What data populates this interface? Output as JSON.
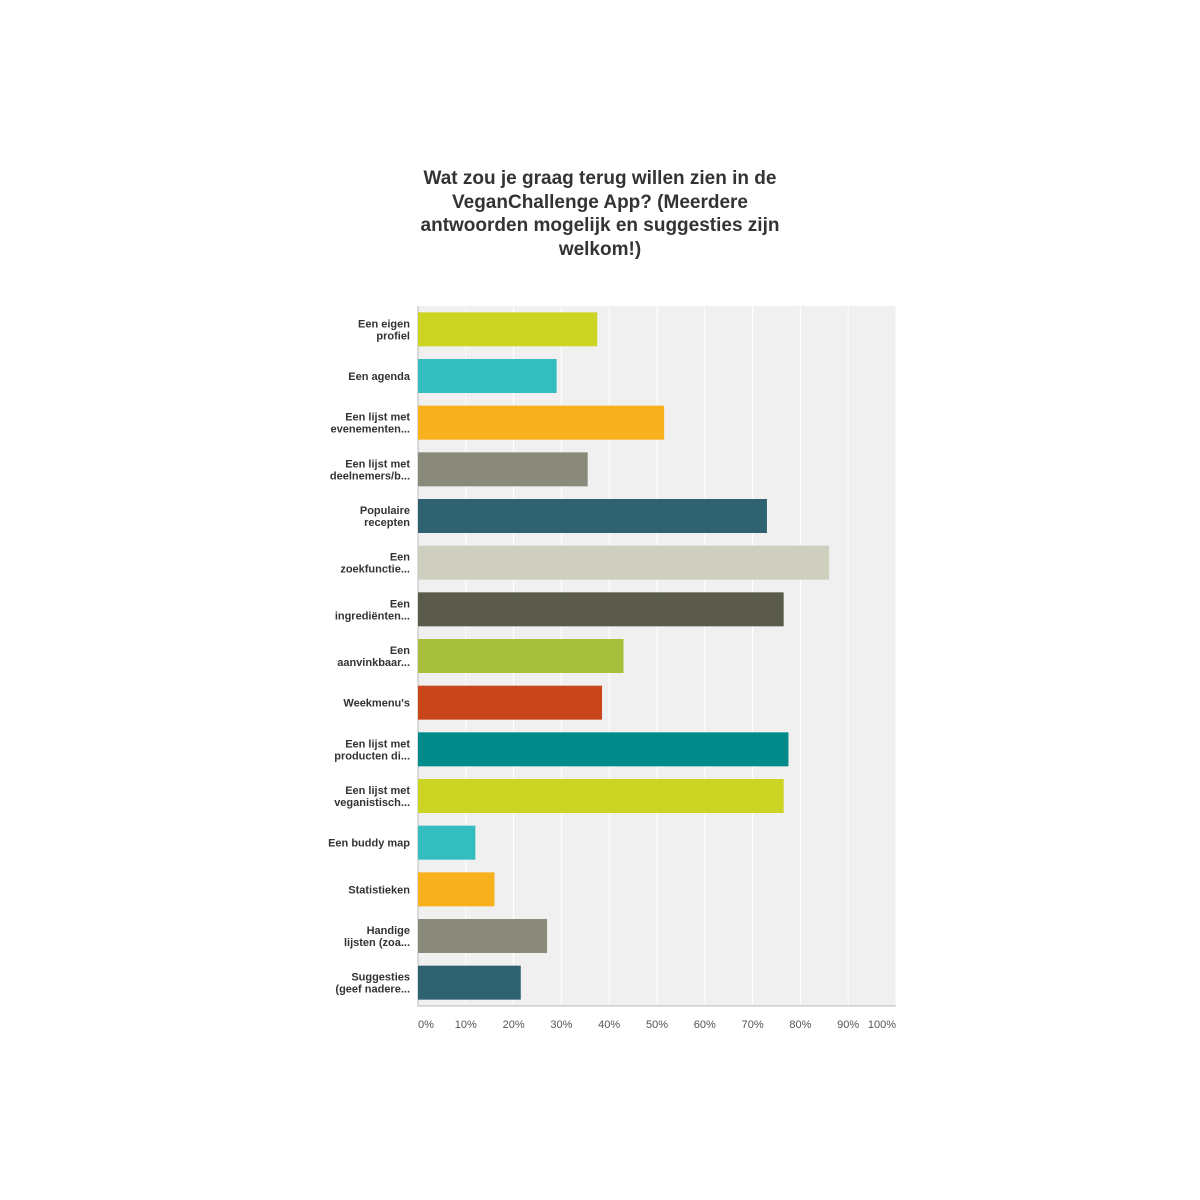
{
  "chart_data": {
    "type": "bar",
    "orientation": "horizontal",
    "title": "Wat zou je graag terug willen zien in de VeganChallenge App? (Meerdere antwoorden mogelijk en suggesties zijn welkom!)",
    "xlabel": "",
    "ylabel": "",
    "xlim": [
      0,
      100
    ],
    "x_ticks": [
      "0%",
      "10%",
      "20%",
      "30%",
      "40%",
      "50%",
      "60%",
      "70%",
      "80%",
      "90%",
      "100%"
    ],
    "grid": true,
    "categories": [
      [
        "Een eigen",
        "profiel"
      ],
      [
        "Een agenda"
      ],
      [
        "Een lijst met",
        "evenementen..."
      ],
      [
        "Een lijst met",
        "deelnemers/b..."
      ],
      [
        "Populaire",
        "recepten"
      ],
      [
        "Een",
        "zoekfunctie..."
      ],
      [
        "Een",
        "ingrediënten..."
      ],
      [
        "Een",
        "aanvinkbaar..."
      ],
      [
        "Weekmenu's"
      ],
      [
        "Een lijst met",
        "producten di..."
      ],
      [
        "Een lijst met",
        "veganistisch..."
      ],
      [
        "Een buddy map"
      ],
      [
        "Statistieken"
      ],
      [
        "Handige",
        "lijsten (zoa..."
      ],
      [
        "Suggesties",
        "(geef nadere..."
      ]
    ],
    "values": [
      37.5,
      29,
      51.5,
      35.5,
      73,
      86,
      76.5,
      43,
      38.5,
      77.5,
      76.5,
      12,
      16,
      27,
      21.5
    ],
    "colors": [
      "#ccd523",
      "#33bdbf",
      "#f7b11c",
      "#8a8a7a",
      "#2f6270",
      "#cfcfc0",
      "#5a5b4b",
      "#a8bf3b",
      "#c9461a",
      "#008b8b",
      "#ccd523",
      "#33bdbf",
      "#f7b11c",
      "#8a8a7a",
      "#2f6270"
    ]
  }
}
